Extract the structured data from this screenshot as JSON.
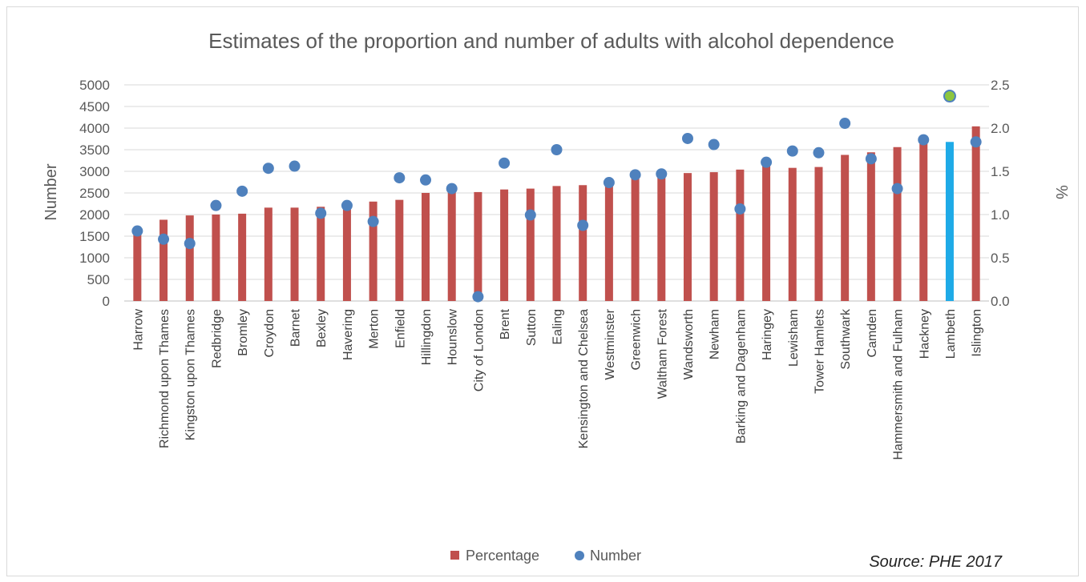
{
  "chart_data": {
    "type": "bar",
    "title": "Estimates of the proportion and number of adults with alcohol dependence",
    "ylabel": "Number",
    "y2label": "%",
    "ylim": [
      0,
      5000
    ],
    "y2lim": [
      0,
      2.5
    ],
    "yticks": [
      "0",
      "500",
      "1000",
      "1500",
      "2000",
      "2500",
      "3000",
      "3500",
      "4000",
      "4500",
      "5000"
    ],
    "y2ticks": [
      "0.0",
      "0.5",
      "1.0",
      "1.5",
      "2.0",
      "2.5"
    ],
    "grid": true,
    "legend_position": "bottom",
    "categories": [
      "Harrow",
      "Richmond upon Thames",
      "Kingston upon Thames",
      "Redbridge",
      "Bromley",
      "Croydon",
      "Barnet",
      "Bexley",
      "Havering",
      "Merton",
      "Enfield",
      "Hillingdon",
      "Hounslow",
      "City of London",
      "Brent",
      "Sutton",
      "Ealing",
      "Kensington and Chelsea",
      "Westminster",
      "Greenwich",
      "Waltham Forest",
      "Wandsworth",
      "Newham",
      "Barking and Dagenham",
      "Haringey",
      "Lewisham",
      "Tower Hamlets",
      "Southwark",
      "Camden",
      "Hammersmith and Fulham",
      "Hackney",
      "Lambeth",
      "Islington"
    ],
    "series": [
      {
        "name": "Percentage",
        "kind": "bar",
        "axis": "right",
        "color": "#c0504d",
        "values": [
          0.79,
          0.94,
          0.99,
          1.0,
          1.01,
          1.08,
          1.08,
          1.09,
          1.1,
          1.15,
          1.17,
          1.25,
          1.26,
          1.26,
          1.29,
          1.3,
          1.33,
          1.34,
          1.37,
          1.45,
          1.46,
          1.48,
          1.49,
          1.52,
          1.56,
          1.54,
          1.55,
          1.69,
          1.72,
          1.78,
          1.84,
          1.84,
          2.02
        ]
      },
      {
        "name": "Number",
        "kind": "scatter",
        "axis": "left",
        "color": "#4f81bd",
        "values": [
          1620,
          1430,
          1330,
          2210,
          2540,
          3070,
          3120,
          2030,
          2210,
          1840,
          2850,
          2800,
          2600,
          100,
          3190,
          1990,
          3500,
          1750,
          2740,
          2920,
          2940,
          3760,
          3620,
          2130,
          3210,
          3470,
          3430,
          4110,
          3290,
          2600,
          3730,
          4740,
          3680
        ]
      }
    ],
    "highlight": {
      "category": "Lambeth",
      "bar_color": "#1eaae7",
      "marker_color": "#8dc63f"
    },
    "legend": [
      "Percentage",
      "Number"
    ],
    "source": "Source: PHE 2017"
  }
}
